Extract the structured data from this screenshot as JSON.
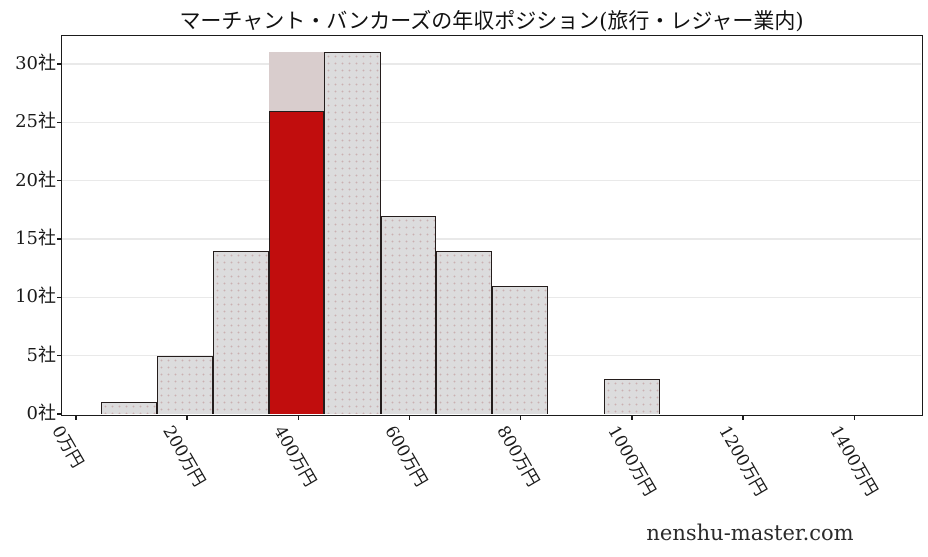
{
  "watermark": "nenshu-master.com",
  "chart_data": {
    "type": "bar",
    "subtype": "histogram",
    "title": "マーチャント・バンカーズの年収ポジション(旅行・レジャー業内)",
    "xlabel": "",
    "ylabel": "",
    "x_unit": "万円",
    "y_unit": "社",
    "x_range_manen": [
      -25,
      1520
    ],
    "y_range": [
      0,
      32.4
    ],
    "grid": "horizontal-only",
    "legend": "none",
    "bins": [
      {
        "x0": 45,
        "x1": 145,
        "count": 1
      },
      {
        "x0": 145,
        "x1": 246,
        "count": 5
      },
      {
        "x0": 246,
        "x1": 347,
        "count": 14
      },
      {
        "x0": 347,
        "x1": 447,
        "count": 31,
        "highlighted": true,
        "highlight_count": 26
      },
      {
        "x0": 447,
        "x1": 548,
        "count": 31
      },
      {
        "x0": 548,
        "x1": 648,
        "count": 17
      },
      {
        "x0": 648,
        "x1": 749,
        "count": 14
      },
      {
        "x0": 749,
        "x1": 849,
        "count": 11
      },
      {
        "x0": 849,
        "x1": 950,
        "count": 0
      },
      {
        "x0": 950,
        "x1": 1051,
        "count": 3
      }
    ],
    "highlight": {
      "bin_index": 3,
      "red_count": 26,
      "backdrop_count": 31
    },
    "x_ticks": [
      {
        "value": 0,
        "label": "0万円"
      },
      {
        "value": 200,
        "label": "200万円"
      },
      {
        "value": 400,
        "label": "400万円"
      },
      {
        "value": 600,
        "label": "600万円"
      },
      {
        "value": 800,
        "label": "800万円"
      },
      {
        "value": 1000,
        "label": "1000万円"
      },
      {
        "value": 1200,
        "label": "1200万円"
      },
      {
        "value": 1400,
        "label": "1400万円"
      }
    ],
    "y_ticks": [
      {
        "value": 0,
        "label": "0社"
      },
      {
        "value": 5,
        "label": "5社"
      },
      {
        "value": 10,
        "label": "10社"
      },
      {
        "value": 15,
        "label": "15社"
      },
      {
        "value": 20,
        "label": "20社"
      },
      {
        "value": 25,
        "label": "25社"
      },
      {
        "value": 30,
        "label": "30社"
      }
    ],
    "colors": {
      "bar_fill": "#dcdcdd",
      "bar_hatch_dot": "#c9aeae",
      "bar_edge": "#241d1c",
      "highlight_red": "#c10d0d",
      "highlight_pink_backdrop": "#d9cdcd",
      "gridline": "#e9e9e9",
      "axis": "#1b1b1b",
      "text": "#1a1a1a"
    }
  }
}
